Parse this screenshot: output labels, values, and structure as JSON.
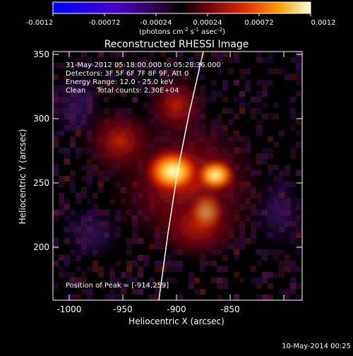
{
  "colorbar": {
    "tick_labels": [
      "-0.0012",
      "-0.00072",
      "-0.00024",
      "0.00024",
      "0.00072",
      "0.0012"
    ],
    "units_prefix": "(photons cm",
    "units_exp1": "-2",
    "units_mid": " s",
    "units_exp2": "-1",
    "units_mid2": " asec",
    "units_exp3": "-2",
    "units_suffix": ")"
  },
  "plot": {
    "title": "Reconstructed RHESSI Image",
    "xlabel": "Heliocentric X (arcsec)",
    "ylabel": "Heliocentric Y (arcsec)",
    "x_ticks": [
      "-1000",
      "-950",
      "-900",
      "-850"
    ],
    "y_ticks": [
      "350",
      "300",
      "250",
      "200"
    ]
  },
  "info": {
    "time_range": "31-May-2012 05:18:00.000 to 05:28:36.000",
    "detectors": "Detectors: 3F 5F 6F 7F 8F 9F, Att 0",
    "energy": "Energy Range: 12.0 - 25.0 keV",
    "clean": "Clean     Total counts: 2.30E+04",
    "peak": "Position of Peak = [-914,259]"
  },
  "footer": {
    "timestamp": "10-May-2014 00:25"
  },
  "colors": {
    "background": "#000000",
    "limb": "#ffffff"
  }
}
